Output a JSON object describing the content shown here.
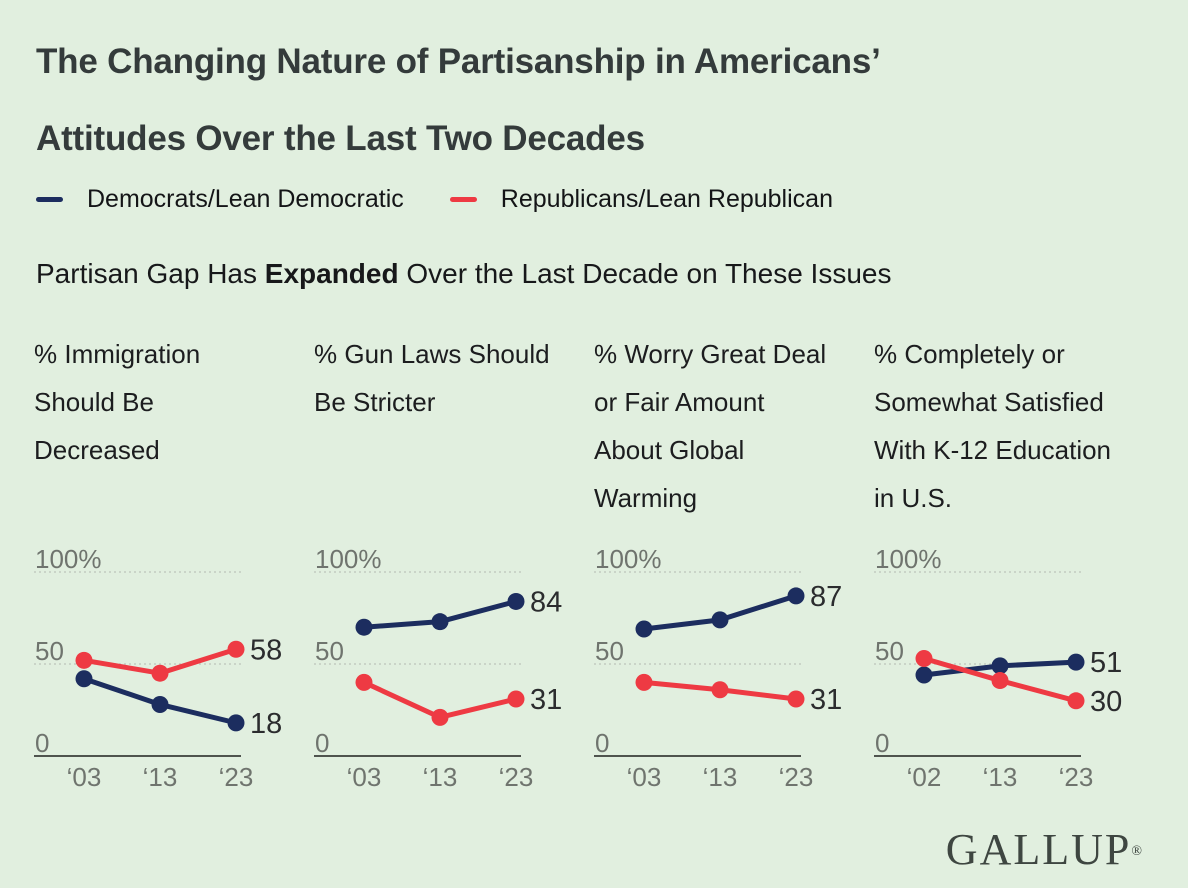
{
  "title": {
    "line1": "The Changing Nature of Partisanship in Americans’",
    "line2": "Attitudes Over the Last Two Decades"
  },
  "legend": {
    "items": [
      {
        "label": "Democrats/Lean Democratic",
        "color": "#1c2d5f"
      },
      {
        "label": "Republicans/Lean Republican",
        "color": "#ee3a43"
      }
    ]
  },
  "subtitle": {
    "prefix": "Partisan Gap Has ",
    "highlight": "Expanded",
    "suffix": " Over the Last Decade on These Issues"
  },
  "footer": {
    "brand": "GALLUP",
    "registered": "®"
  },
  "colors": {
    "background": "#e1efdf",
    "democrat": "#1c2d5f",
    "republican": "#ee3a43",
    "axis_label": "#6f746e",
    "grid": "#c3ccc0"
  },
  "chart_data": [
    {
      "type": "line",
      "title_lines": [
        "% Immigration",
        "Should Be",
        "Decreased"
      ],
      "categories": [
        "‘03",
        "‘13",
        "‘23"
      ],
      "ylim": [
        0,
        100
      ],
      "yticks": [
        {
          "value": 100,
          "label": "100%"
        },
        {
          "value": 50,
          "label": "50"
        },
        {
          "value": 0,
          "label": "0"
        }
      ],
      "grid": "horizontal-dotted",
      "series": [
        {
          "name": "Democrats/Lean Democratic",
          "color": "#1c2d5f",
          "values": [
            42,
            28,
            18
          ],
          "end_label": "18"
        },
        {
          "name": "Republicans/Lean Republican",
          "color": "#ee3a43",
          "values": [
            52,
            45,
            58
          ],
          "end_label": "58"
        }
      ]
    },
    {
      "type": "line",
      "title_lines": [
        "% Gun Laws Should",
        "Be Stricter"
      ],
      "categories": [
        "‘03",
        "‘13",
        "‘23"
      ],
      "ylim": [
        0,
        100
      ],
      "yticks": [
        {
          "value": 100,
          "label": "100%"
        },
        {
          "value": 50,
          "label": "50"
        },
        {
          "value": 0,
          "label": "0"
        }
      ],
      "grid": "horizontal-dotted",
      "series": [
        {
          "name": "Democrats/Lean Democratic",
          "color": "#1c2d5f",
          "values": [
            70,
            73,
            84
          ],
          "end_label": "84"
        },
        {
          "name": "Republicans/Lean Republican",
          "color": "#ee3a43",
          "values": [
            40,
            21,
            31
          ],
          "end_label": "31"
        }
      ]
    },
    {
      "type": "line",
      "title_lines": [
        "% Worry Great Deal",
        "or Fair Amount",
        "About Global",
        "Warming"
      ],
      "categories": [
        "‘03",
        "‘13",
        "‘23"
      ],
      "ylim": [
        0,
        100
      ],
      "yticks": [
        {
          "value": 100,
          "label": "100%"
        },
        {
          "value": 50,
          "label": "50"
        },
        {
          "value": 0,
          "label": "0"
        }
      ],
      "grid": "horizontal-dotted",
      "series": [
        {
          "name": "Democrats/Lean Democratic",
          "color": "#1c2d5f",
          "values": [
            69,
            74,
            87
          ],
          "end_label": "87"
        },
        {
          "name": "Republicans/Lean Republican",
          "color": "#ee3a43",
          "values": [
            40,
            36,
            31
          ],
          "end_label": "31"
        }
      ]
    },
    {
      "type": "line",
      "title_lines": [
        "% Completely or",
        "Somewhat Satisfied",
        "With K-12 Education",
        "in U.S."
      ],
      "categories": [
        "‘02",
        "‘13",
        "‘23"
      ],
      "ylim": [
        0,
        100
      ],
      "yticks": [
        {
          "value": 100,
          "label": "100%"
        },
        {
          "value": 50,
          "label": "50"
        },
        {
          "value": 0,
          "label": "0"
        }
      ],
      "grid": "horizontal-dotted",
      "series": [
        {
          "name": "Democrats/Lean Democratic",
          "color": "#1c2d5f",
          "values": [
            44,
            49,
            51
          ],
          "end_label": "51"
        },
        {
          "name": "Republicans/Lean Republican",
          "color": "#ee3a43",
          "values": [
            53,
            41,
            30
          ],
          "end_label": "30"
        }
      ]
    }
  ]
}
